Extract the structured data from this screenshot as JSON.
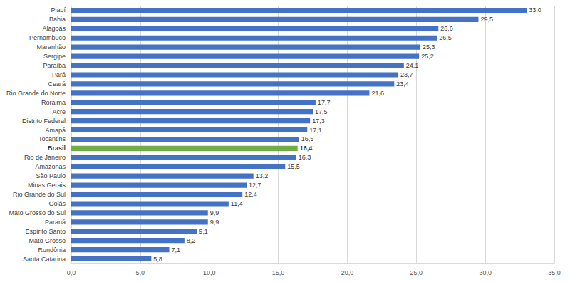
{
  "chart_data": {
    "type": "bar",
    "orientation": "horizontal",
    "categories": [
      "Piauí",
      "Bahia",
      "Alagoas",
      "Pernambuco",
      "Maranhão",
      "Sergipe",
      "Paraíba",
      "Pará",
      "Ceará",
      "Rio Grande do Norte",
      "Roraima",
      "Acre",
      "Distrito Federal",
      "Amapá",
      "Tocantins",
      "Brasil",
      "Rio de Janeiro",
      "Amazonas",
      "São Paulo",
      "Minas Gerais",
      "Rio Grande do Sul",
      "Goiás",
      "Mato Grosso do Sul",
      "Paraná",
      "Espírito Santo",
      "Mato Grosso",
      "Rondônia",
      "Santa Catarina"
    ],
    "values": [
      33.0,
      29.5,
      26.6,
      26.5,
      25.3,
      25.2,
      24.1,
      23.7,
      23.4,
      21.6,
      17.7,
      17.5,
      17.3,
      17.1,
      16.5,
      16.4,
      16.3,
      15.5,
      13.2,
      12.7,
      12.4,
      11.4,
      9.9,
      9.9,
      9.1,
      8.2,
      7.1,
      5.8
    ],
    "value_labels": [
      "33,0",
      "29,5",
      "26,6",
      "26,5",
      "25,3",
      "25,2",
      "24,1",
      "23,7",
      "23,4",
      "21,6",
      "17,7",
      "17,5",
      "17,3",
      "17,1",
      "16,5",
      "16,4",
      "16,3",
      "15,5",
      "13,2",
      "12,7",
      "12,4",
      "11,4",
      "9,9",
      "9,9",
      "9,1",
      "8,2",
      "7,1",
      "5,8"
    ],
    "colors": [
      "#4472c4",
      "#4472c4",
      "#4472c4",
      "#4472c4",
      "#4472c4",
      "#4472c4",
      "#4472c4",
      "#4472c4",
      "#4472c4",
      "#4472c4",
      "#4472c4",
      "#4472c4",
      "#4472c4",
      "#4472c4",
      "#4472c4",
      "#70ad47",
      "#4472c4",
      "#4472c4",
      "#4472c4",
      "#4472c4",
      "#4472c4",
      "#4472c4",
      "#4472c4",
      "#4472c4",
      "#4472c4",
      "#4472c4",
      "#4472c4",
      "#4472c4"
    ],
    "xlim": [
      0,
      35
    ],
    "xticks": [
      {
        "value": 0,
        "label": "0,0"
      },
      {
        "value": 5,
        "label": "5,0"
      },
      {
        "value": 10,
        "label": "10,0"
      },
      {
        "value": 15,
        "label": "15,0"
      },
      {
        "value": 20,
        "label": "20,0"
      },
      {
        "value": 25,
        "label": "25,0"
      },
      {
        "value": 30,
        "label": "30,0"
      },
      {
        "value": 35,
        "label": "35,0"
      }
    ],
    "grid": true,
    "data_labels": true
  }
}
